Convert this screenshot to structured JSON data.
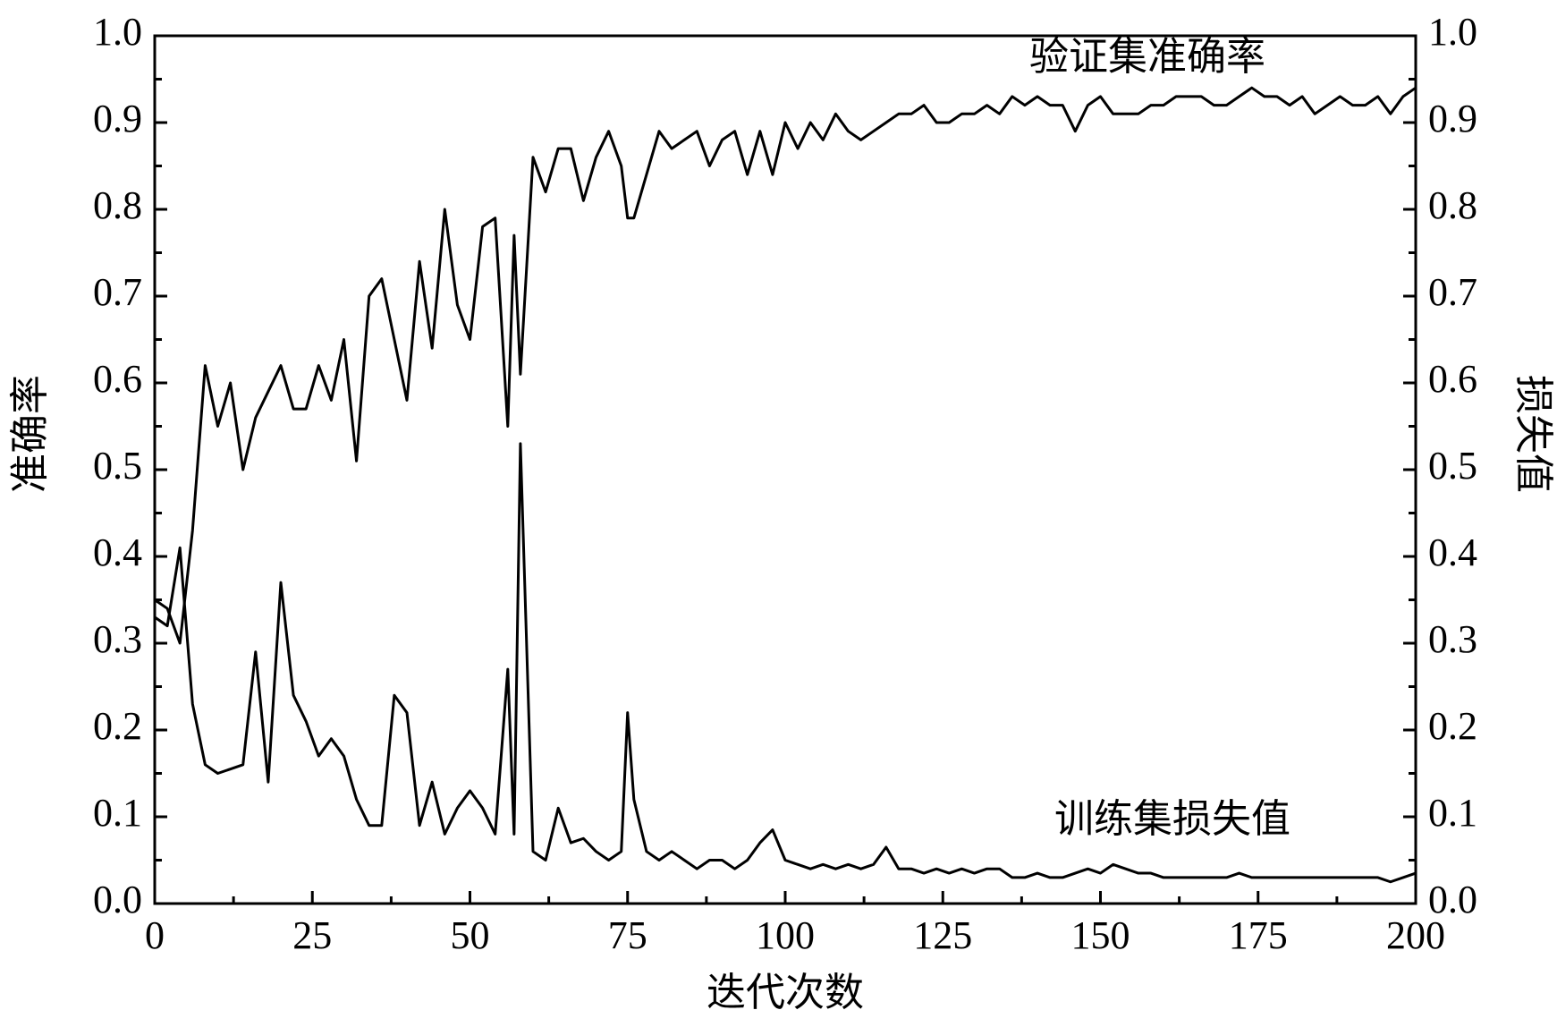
{
  "chart_data": {
    "type": "line",
    "x_label": "迭代次数",
    "y_label": "准确率",
    "y2_label": "损失值",
    "annotations": [
      "验证集准确率",
      "训练集损失值"
    ],
    "x": [
      0,
      2,
      4,
      6,
      8,
      10,
      12,
      14,
      16,
      18,
      20,
      22,
      24,
      26,
      28,
      30,
      32,
      34,
      36,
      38,
      40,
      42,
      44,
      46,
      48,
      50,
      52,
      54,
      56,
      57,
      58,
      60,
      62,
      64,
      66,
      68,
      70,
      72,
      74,
      75,
      76,
      78,
      80,
      82,
      84,
      86,
      88,
      90,
      92,
      94,
      96,
      98,
      100,
      102,
      104,
      106,
      108,
      110,
      112,
      114,
      116,
      118,
      120,
      122,
      124,
      126,
      128,
      130,
      132,
      134,
      136,
      138,
      140,
      142,
      144,
      146,
      148,
      150,
      152,
      154,
      156,
      158,
      160,
      162,
      164,
      166,
      168,
      170,
      172,
      174,
      176,
      178,
      180,
      182,
      184,
      186,
      188,
      190,
      192,
      194,
      196,
      198,
      200
    ],
    "series": [
      {
        "name": "验证集准确率",
        "color": "#000000",
        "values": [
          0.35,
          0.34,
          0.3,
          0.43,
          0.62,
          0.55,
          0.6,
          0.5,
          0.56,
          0.59,
          0.62,
          0.57,
          0.57,
          0.62,
          0.58,
          0.65,
          0.51,
          0.7,
          0.72,
          0.65,
          0.58,
          0.74,
          0.64,
          0.8,
          0.69,
          0.65,
          0.78,
          0.79,
          0.55,
          0.77,
          0.61,
          0.86,
          0.82,
          0.87,
          0.87,
          0.81,
          0.86,
          0.89,
          0.85,
          0.79,
          0.79,
          0.84,
          0.89,
          0.87,
          0.88,
          0.89,
          0.85,
          0.88,
          0.89,
          0.84,
          0.89,
          0.84,
          0.9,
          0.87,
          0.9,
          0.88,
          0.91,
          0.89,
          0.88,
          0.89,
          0.9,
          0.91,
          0.91,
          0.92,
          0.9,
          0.9,
          0.91,
          0.91,
          0.92,
          0.91,
          0.93,
          0.92,
          0.93,
          0.92,
          0.92,
          0.89,
          0.92,
          0.93,
          0.91,
          0.91,
          0.91,
          0.92,
          0.92,
          0.93,
          0.93,
          0.93,
          0.92,
          0.92,
          0.93,
          0.94,
          0.93,
          0.93,
          0.92,
          0.93,
          0.91,
          0.92,
          0.93,
          0.92,
          0.92,
          0.93,
          0.91,
          0.93,
          0.94
        ]
      },
      {
        "name": "训练集损失值",
        "color": "#000000",
        "axis": "y2",
        "values": [
          0.33,
          0.32,
          0.41,
          0.23,
          0.16,
          0.15,
          0.155,
          0.16,
          0.29,
          0.14,
          0.37,
          0.24,
          0.21,
          0.17,
          0.19,
          0.17,
          0.12,
          0.09,
          0.09,
          0.24,
          0.22,
          0.09,
          0.14,
          0.08,
          0.11,
          0.13,
          0.11,
          0.08,
          0.27,
          0.08,
          0.53,
          0.06,
          0.05,
          0.11,
          0.07,
          0.075,
          0.06,
          0.05,
          0.06,
          0.22,
          0.12,
          0.06,
          0.05,
          0.06,
          0.05,
          0.04,
          0.05,
          0.05,
          0.04,
          0.05,
          0.07,
          0.085,
          0.05,
          0.045,
          0.04,
          0.045,
          0.04,
          0.045,
          0.04,
          0.045,
          0.065,
          0.04,
          0.04,
          0.035,
          0.04,
          0.035,
          0.04,
          0.035,
          0.04,
          0.04,
          0.03,
          0.03,
          0.035,
          0.03,
          0.03,
          0.035,
          0.04,
          0.035,
          0.045,
          0.04,
          0.035,
          0.035,
          0.03,
          0.03,
          0.03,
          0.03,
          0.03,
          0.03,
          0.035,
          0.03,
          0.03,
          0.03,
          0.03,
          0.03,
          0.03,
          0.03,
          0.03,
          0.03,
          0.03,
          0.03,
          0.025,
          0.03,
          0.035
        ]
      }
    ],
    "xlim": [
      0,
      200
    ],
    "xticks": [
      0,
      25,
      50,
      75,
      100,
      125,
      150,
      175,
      200
    ],
    "ylim": [
      0,
      1
    ],
    "yticks": [
      {
        "value": 0,
        "label": "0.0"
      },
      0.1,
      0.2,
      0.3,
      0.4,
      0.5,
      0.6,
      0.7,
      0.8,
      0.9,
      {
        "value": 1,
        "label": "1.0"
      }
    ],
    "y2lim": [
      0,
      1
    ],
    "y2ticks": [
      {
        "value": 0,
        "label": "0.0"
      },
      0.1,
      0.2,
      0.3,
      0.4,
      0.5,
      0.6,
      0.7,
      0.8,
      0.9,
      {
        "value": 1,
        "label": "1.0"
      }
    ],
    "grid": false
  }
}
